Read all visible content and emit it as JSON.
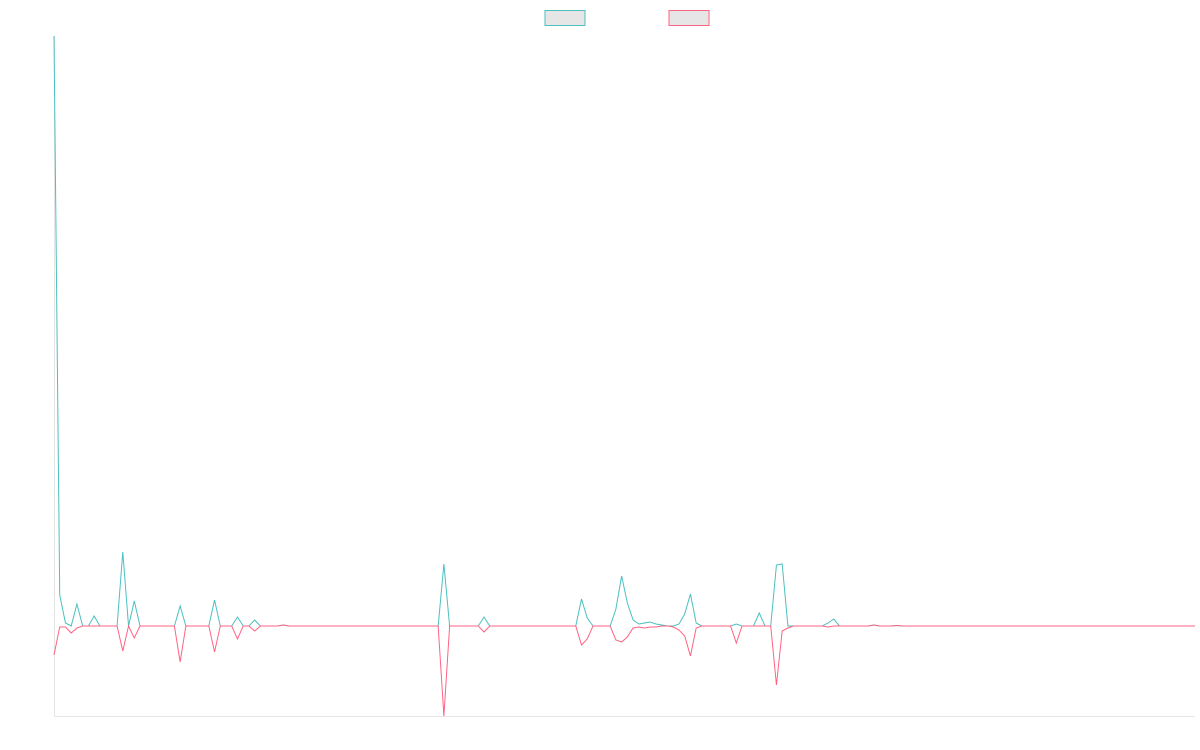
{
  "chart_data": {
    "type": "line",
    "legend": "top",
    "grid": false,
    "ylim": [
      -9,
      59
    ],
    "series": [
      {
        "color": "#4bc0c0",
        "values": [
          59,
          3.1,
          0.3,
          0,
          2.2,
          0,
          0,
          1.0,
          0,
          0,
          0,
          0,
          7.4,
          0,
          2.5,
          0,
          0,
          0,
          0,
          0,
          0,
          0,
          2.0,
          0,
          0,
          0,
          0,
          0,
          2.6,
          0,
          0,
          0,
          0.9,
          0,
          0,
          0.6,
          0,
          0,
          0,
          0,
          0.1,
          0,
          0,
          0,
          0,
          0,
          0,
          0,
          0,
          0,
          0,
          0,
          0,
          0,
          0,
          0,
          0,
          0,
          0,
          0,
          0,
          0,
          0,
          0,
          0,
          0,
          0,
          0,
          6.2,
          0,
          0,
          0,
          0,
          0,
          0,
          0.9,
          0,
          0,
          0,
          0,
          0,
          0,
          0,
          0,
          0,
          0,
          0,
          0,
          0,
          0,
          0,
          0,
          2.7,
          0.8,
          0,
          0,
          0,
          0,
          1.7,
          5.0,
          2.3,
          0.6,
          0.2,
          0.3,
          0.4,
          0.2,
          0.1,
          0,
          0,
          0.2,
          1.2,
          3.2,
          0.3,
          0,
          0,
          0,
          0,
          0,
          0,
          0.2,
          0,
          0,
          0,
          1.3,
          0,
          0,
          6.1,
          6.2,
          0,
          0,
          0,
          0,
          0,
          0,
          0,
          0.3,
          0.7,
          0,
          0,
          0,
          0,
          0,
          0,
          0.1,
          0,
          0,
          0,
          0.05,
          0,
          0,
          0,
          0,
          0,
          0,
          0,
          0,
          0,
          0,
          0,
          0,
          0,
          0,
          0,
          0,
          0,
          0,
          0,
          0,
          0,
          0,
          0,
          0,
          0,
          0,
          0,
          0,
          0,
          0,
          0,
          0,
          0,
          0,
          0,
          0,
          0,
          0,
          0,
          0,
          0,
          0,
          0,
          0,
          0,
          0,
          0,
          0,
          0,
          0,
          0,
          0
        ]
      },
      {
        "color": "#ff6384",
        "values": [
          -2.9,
          -0.1,
          -0.1,
          -0.7,
          -0.2,
          0,
          0,
          0,
          0,
          0,
          0,
          0,
          -2.5,
          0,
          -1.2,
          0,
          0,
          0,
          0,
          0,
          0,
          0,
          -3.6,
          0,
          0,
          0,
          0,
          0,
          -2.6,
          0,
          0,
          0,
          -1.3,
          0,
          0,
          -0.5,
          0,
          0,
          0,
          0,
          0.1,
          0,
          0,
          0,
          0,
          0,
          0,
          0,
          0,
          0,
          0,
          0,
          0,
          0,
          0,
          0,
          0,
          0,
          0,
          0,
          0,
          0,
          0,
          0,
          0,
          0,
          0,
          0,
          -9,
          0,
          0,
          0,
          0,
          0,
          0,
          -0.6,
          0,
          0,
          0,
          0,
          0,
          0,
          0,
          0,
          0,
          0,
          0,
          0,
          0,
          0,
          0,
          0,
          -1.9,
          -1.3,
          0,
          0,
          0,
          0,
          -1.4,
          -1.6,
          -1.1,
          -0.2,
          -0.1,
          -0.2,
          -0.1,
          -0.1,
          0,
          0,
          -0.1,
          -0.4,
          -1.0,
          -3.0,
          -0.2,
          0,
          0,
          0,
          0,
          0,
          0,
          -1.7,
          0,
          0,
          0,
          0,
          0,
          0,
          -5.9,
          -0.5,
          -0.2,
          0,
          0,
          0,
          0,
          0,
          0,
          -0.1,
          0,
          0,
          0,
          0,
          0,
          0,
          0,
          0.1,
          0,
          0,
          0,
          0.05,
          0,
          0,
          0,
          0,
          0,
          0,
          0,
          0,
          0,
          0,
          0,
          0,
          0,
          0,
          0,
          0,
          0,
          0,
          0,
          0,
          0,
          0,
          0,
          0,
          0,
          0,
          0,
          0,
          0,
          0,
          0,
          0,
          0,
          0,
          0,
          0,
          0,
          0,
          0,
          0,
          0,
          0,
          0,
          0,
          0,
          0,
          0,
          0,
          0,
          0,
          0,
          0
        ]
      }
    ]
  }
}
